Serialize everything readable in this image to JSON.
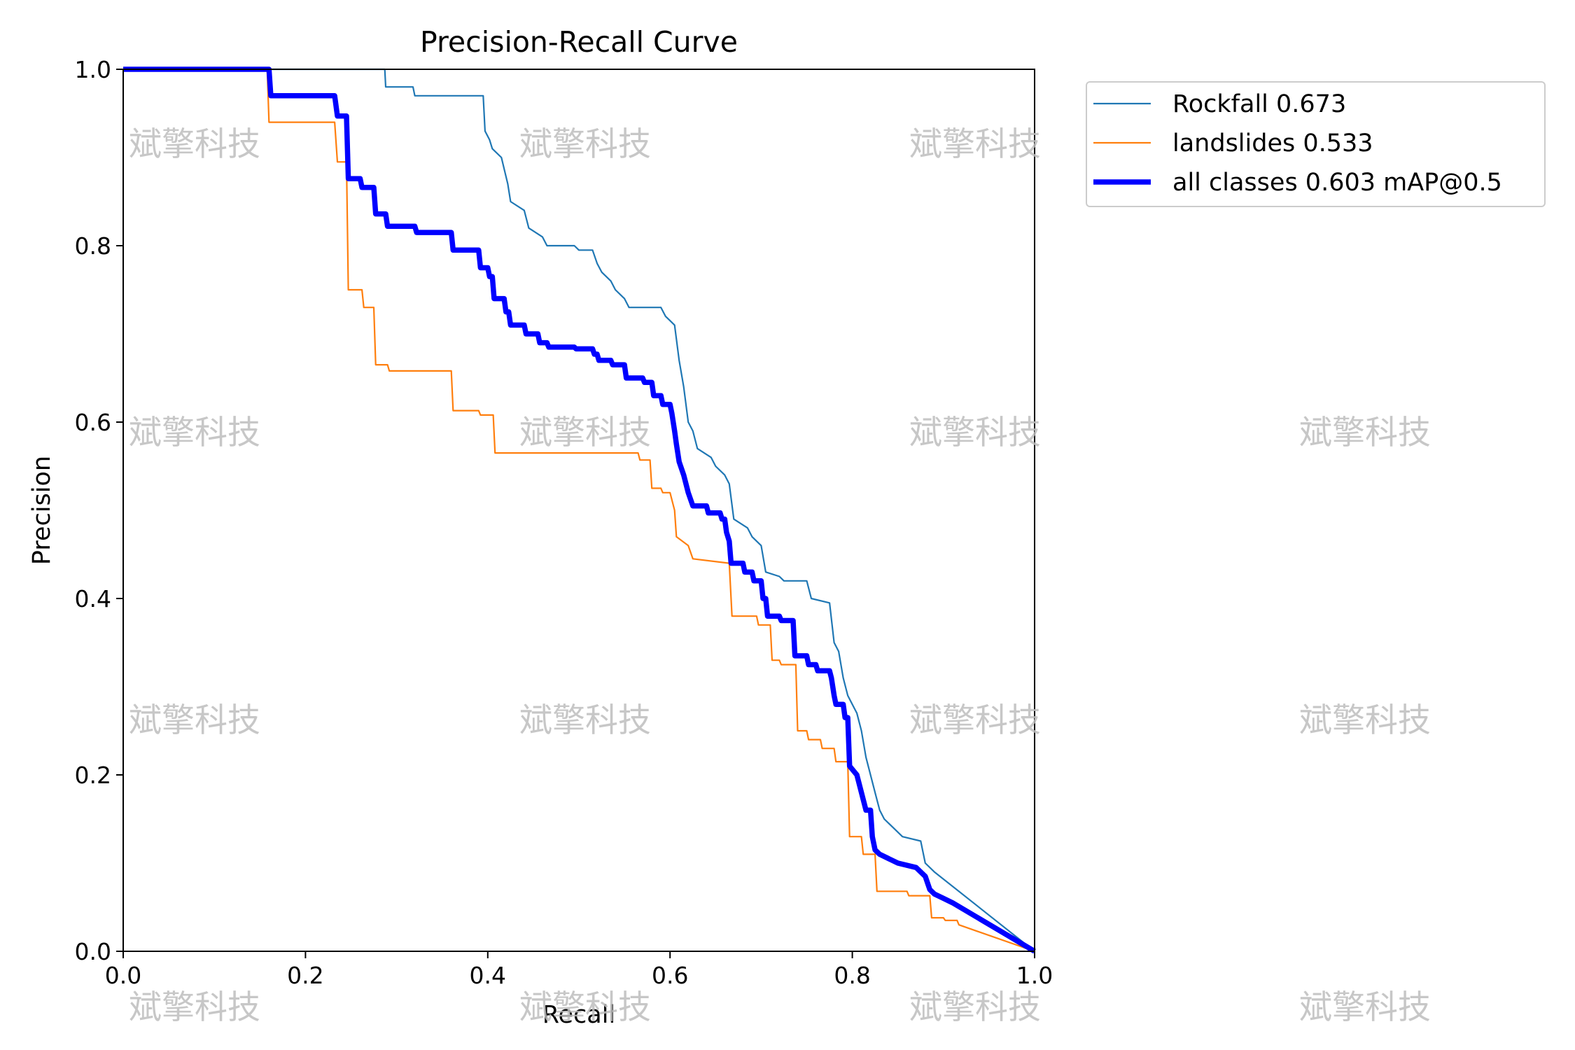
{
  "chart_data": {
    "type": "line",
    "title": "Precision-Recall Curve",
    "xlabel": "Recall",
    "ylabel": "Precision",
    "xlim": [
      0.0,
      1.0
    ],
    "ylim": [
      0.0,
      1.0
    ],
    "x_ticks": [
      "0.0",
      "0.2",
      "0.4",
      "0.6",
      "0.8",
      "1.0"
    ],
    "y_ticks": [
      "0.0",
      "0.2",
      "0.4",
      "0.6",
      "0.8",
      "1.0"
    ],
    "grid": false,
    "legend_position": "outside-top-right",
    "series": [
      {
        "name": "Rockfall 0.673",
        "color": "#1f77b4",
        "width": 2.2,
        "points": [
          [
            0,
            1.0
          ],
          [
            0.287,
            1.0
          ],
          [
            0.288,
            0.98
          ],
          [
            0.318,
            0.98
          ],
          [
            0.32,
            0.97
          ],
          [
            0.395,
            0.97
          ],
          [
            0.397,
            0.93
          ],
          [
            0.402,
            0.92
          ],
          [
            0.405,
            0.91
          ],
          [
            0.415,
            0.9
          ],
          [
            0.422,
            0.87
          ],
          [
            0.425,
            0.85
          ],
          [
            0.44,
            0.84
          ],
          [
            0.445,
            0.82
          ],
          [
            0.46,
            0.81
          ],
          [
            0.465,
            0.8
          ],
          [
            0.495,
            0.8
          ],
          [
            0.5,
            0.795
          ],
          [
            0.515,
            0.795
          ],
          [
            0.52,
            0.78
          ],
          [
            0.525,
            0.77
          ],
          [
            0.535,
            0.76
          ],
          [
            0.54,
            0.75
          ],
          [
            0.55,
            0.74
          ],
          [
            0.555,
            0.73
          ],
          [
            0.59,
            0.73
          ],
          [
            0.595,
            0.72
          ],
          [
            0.6,
            0.715
          ],
          [
            0.605,
            0.71
          ],
          [
            0.61,
            0.67
          ],
          [
            0.615,
            0.64
          ],
          [
            0.62,
            0.6
          ],
          [
            0.625,
            0.59
          ],
          [
            0.63,
            0.57
          ],
          [
            0.645,
            0.56
          ],
          [
            0.65,
            0.55
          ],
          [
            0.66,
            0.54
          ],
          [
            0.665,
            0.53
          ],
          [
            0.67,
            0.49
          ],
          [
            0.685,
            0.48
          ],
          [
            0.69,
            0.47
          ],
          [
            0.7,
            0.46
          ],
          [
            0.705,
            0.43
          ],
          [
            0.72,
            0.425
          ],
          [
            0.725,
            0.42
          ],
          [
            0.75,
            0.42
          ],
          [
            0.755,
            0.4
          ],
          [
            0.775,
            0.395
          ],
          [
            0.78,
            0.35
          ],
          [
            0.785,
            0.34
          ],
          [
            0.79,
            0.31
          ],
          [
            0.795,
            0.29
          ],
          [
            0.8,
            0.28
          ],
          [
            0.805,
            0.27
          ],
          [
            0.81,
            0.25
          ],
          [
            0.815,
            0.22
          ],
          [
            0.82,
            0.2
          ],
          [
            0.825,
            0.18
          ],
          [
            0.83,
            0.16
          ],
          [
            0.835,
            0.15
          ],
          [
            0.845,
            0.14
          ],
          [
            0.855,
            0.13
          ],
          [
            0.875,
            0.125
          ],
          [
            0.88,
            0.1
          ],
          [
            0.89,
            0.09
          ],
          [
            1.0,
            0.0
          ]
        ]
      },
      {
        "name": "landslides 0.533",
        "color": "#ff7f0e",
        "width": 2.2,
        "points": [
          [
            0,
            1.0
          ],
          [
            0.158,
            1.0
          ],
          [
            0.16,
            0.94
          ],
          [
            0.232,
            0.94
          ],
          [
            0.235,
            0.895
          ],
          [
            0.245,
            0.895
          ],
          [
            0.247,
            0.75
          ],
          [
            0.262,
            0.75
          ],
          [
            0.264,
            0.73
          ],
          [
            0.275,
            0.73
          ],
          [
            0.277,
            0.665
          ],
          [
            0.29,
            0.665
          ],
          [
            0.292,
            0.658
          ],
          [
            0.36,
            0.658
          ],
          [
            0.362,
            0.613
          ],
          [
            0.39,
            0.613
          ],
          [
            0.392,
            0.608
          ],
          [
            0.406,
            0.608
          ],
          [
            0.408,
            0.565
          ],
          [
            0.565,
            0.565
          ],
          [
            0.567,
            0.557
          ],
          [
            0.578,
            0.557
          ],
          [
            0.58,
            0.525
          ],
          [
            0.59,
            0.525
          ],
          [
            0.592,
            0.52
          ],
          [
            0.6,
            0.52
          ],
          [
            0.605,
            0.5
          ],
          [
            0.607,
            0.47
          ],
          [
            0.62,
            0.46
          ],
          [
            0.625,
            0.445
          ],
          [
            0.665,
            0.44
          ],
          [
            0.668,
            0.38
          ],
          [
            0.695,
            0.38
          ],
          [
            0.697,
            0.37
          ],
          [
            0.71,
            0.37
          ],
          [
            0.712,
            0.33
          ],
          [
            0.72,
            0.33
          ],
          [
            0.722,
            0.325
          ],
          [
            0.738,
            0.325
          ],
          [
            0.74,
            0.25
          ],
          [
            0.75,
            0.25
          ],
          [
            0.752,
            0.24
          ],
          [
            0.765,
            0.24
          ],
          [
            0.767,
            0.23
          ],
          [
            0.78,
            0.23
          ],
          [
            0.782,
            0.215
          ],
          [
            0.795,
            0.215
          ],
          [
            0.797,
            0.13
          ],
          [
            0.81,
            0.13
          ],
          [
            0.812,
            0.11
          ],
          [
            0.825,
            0.11
          ],
          [
            0.827,
            0.068
          ],
          [
            0.86,
            0.068
          ],
          [
            0.862,
            0.063
          ],
          [
            0.885,
            0.063
          ],
          [
            0.887,
            0.038
          ],
          [
            0.9,
            0.038
          ],
          [
            0.902,
            0.035
          ],
          [
            0.915,
            0.035
          ],
          [
            0.917,
            0.03
          ],
          [
            1.0,
            0.0
          ]
        ]
      },
      {
        "name": "all classes 0.603 mAP@0.5",
        "color": "#0000ff",
        "width": 7.5,
        "points": [
          [
            0,
            1.0
          ],
          [
            0.16,
            1.0
          ],
          [
            0.162,
            0.97
          ],
          [
            0.232,
            0.97
          ],
          [
            0.235,
            0.947
          ],
          [
            0.245,
            0.947
          ],
          [
            0.247,
            0.876
          ],
          [
            0.26,
            0.876
          ],
          [
            0.262,
            0.866
          ],
          [
            0.275,
            0.866
          ],
          [
            0.277,
            0.836
          ],
          [
            0.288,
            0.836
          ],
          [
            0.29,
            0.822
          ],
          [
            0.32,
            0.822
          ],
          [
            0.322,
            0.815
          ],
          [
            0.36,
            0.815
          ],
          [
            0.362,
            0.795
          ],
          [
            0.39,
            0.795
          ],
          [
            0.392,
            0.775
          ],
          [
            0.4,
            0.775
          ],
          [
            0.402,
            0.765
          ],
          [
            0.405,
            0.765
          ],
          [
            0.407,
            0.74
          ],
          [
            0.418,
            0.74
          ],
          [
            0.42,
            0.725
          ],
          [
            0.423,
            0.725
          ],
          [
            0.425,
            0.71
          ],
          [
            0.44,
            0.71
          ],
          [
            0.442,
            0.7
          ],
          [
            0.455,
            0.7
          ],
          [
            0.457,
            0.69
          ],
          [
            0.465,
            0.69
          ],
          [
            0.467,
            0.685
          ],
          [
            0.495,
            0.685
          ],
          [
            0.497,
            0.683
          ],
          [
            0.515,
            0.683
          ],
          [
            0.517,
            0.677
          ],
          [
            0.52,
            0.677
          ],
          [
            0.522,
            0.67
          ],
          [
            0.535,
            0.67
          ],
          [
            0.537,
            0.665
          ],
          [
            0.55,
            0.665
          ],
          [
            0.552,
            0.65
          ],
          [
            0.57,
            0.65
          ],
          [
            0.572,
            0.645
          ],
          [
            0.58,
            0.645
          ],
          [
            0.582,
            0.63
          ],
          [
            0.59,
            0.63
          ],
          [
            0.592,
            0.62
          ],
          [
            0.6,
            0.62
          ],
          [
            0.602,
            0.61
          ],
          [
            0.605,
            0.59
          ],
          [
            0.607,
            0.575
          ],
          [
            0.61,
            0.555
          ],
          [
            0.615,
            0.54
          ],
          [
            0.62,
            0.52
          ],
          [
            0.625,
            0.505
          ],
          [
            0.64,
            0.505
          ],
          [
            0.642,
            0.497
          ],
          [
            0.655,
            0.497
          ],
          [
            0.657,
            0.49
          ],
          [
            0.66,
            0.49
          ],
          [
            0.662,
            0.475
          ],
          [
            0.665,
            0.465
          ],
          [
            0.667,
            0.44
          ],
          [
            0.68,
            0.44
          ],
          [
            0.682,
            0.43
          ],
          [
            0.69,
            0.43
          ],
          [
            0.692,
            0.42
          ],
          [
            0.7,
            0.42
          ],
          [
            0.702,
            0.4
          ],
          [
            0.705,
            0.4
          ],
          [
            0.707,
            0.38
          ],
          [
            0.72,
            0.38
          ],
          [
            0.722,
            0.375
          ],
          [
            0.735,
            0.375
          ],
          [
            0.737,
            0.335
          ],
          [
            0.75,
            0.335
          ],
          [
            0.752,
            0.325
          ],
          [
            0.76,
            0.325
          ],
          [
            0.762,
            0.318
          ],
          [
            0.775,
            0.318
          ],
          [
            0.777,
            0.31
          ],
          [
            0.78,
            0.29
          ],
          [
            0.782,
            0.28
          ],
          [
            0.79,
            0.28
          ],
          [
            0.792,
            0.265
          ],
          [
            0.795,
            0.265
          ],
          [
            0.797,
            0.21
          ],
          [
            0.805,
            0.2
          ],
          [
            0.81,
            0.18
          ],
          [
            0.815,
            0.16
          ],
          [
            0.82,
            0.16
          ],
          [
            0.822,
            0.13
          ],
          [
            0.825,
            0.115
          ],
          [
            0.83,
            0.11
          ],
          [
            0.84,
            0.105
          ],
          [
            0.85,
            0.1
          ],
          [
            0.87,
            0.095
          ],
          [
            0.88,
            0.085
          ],
          [
            0.885,
            0.07
          ],
          [
            0.89,
            0.065
          ],
          [
            0.9,
            0.06
          ],
          [
            0.91,
            0.055
          ],
          [
            1.0,
            0.0
          ]
        ]
      }
    ]
  },
  "watermark": {
    "text": "斌擎科技"
  }
}
